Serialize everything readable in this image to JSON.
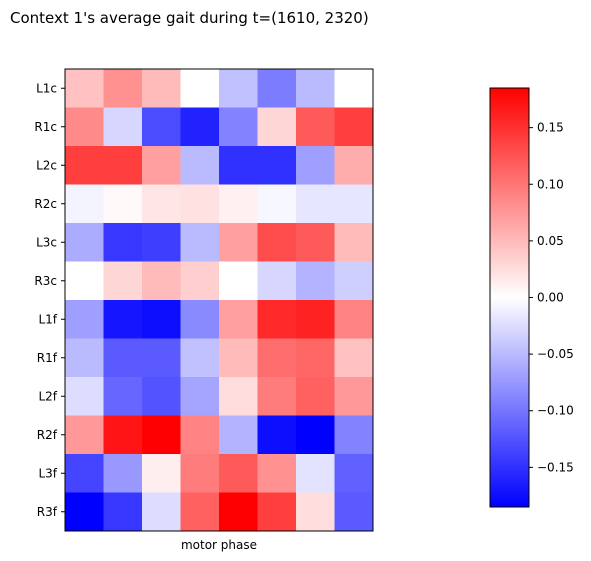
{
  "chart_data": {
    "type": "heatmap",
    "title": "Context 1's average gait during t=(1610, 2320)",
    "xlabel": "motor phase",
    "ylabel": "",
    "rows": [
      "L1c",
      "R1c",
      "L2c",
      "R2c",
      "L3c",
      "R3c",
      "L1f",
      "R1f",
      "L2f",
      "R2f",
      "L3f",
      "R3f"
    ],
    "columns_count": 8,
    "values": [
      [
        0.045,
        0.08,
        0.05,
        0.0,
        -0.045,
        -0.095,
        -0.05,
        0.0
      ],
      [
        0.085,
        -0.03,
        -0.13,
        -0.16,
        -0.09,
        0.03,
        0.12,
        0.14
      ],
      [
        0.14,
        0.14,
        0.07,
        -0.05,
        -0.15,
        -0.15,
        -0.07,
        0.06
      ],
      [
        -0.008,
        0.004,
        0.018,
        0.022,
        0.01,
        -0.006,
        -0.018,
        -0.018
      ],
      [
        -0.06,
        -0.145,
        -0.14,
        -0.05,
        0.07,
        0.13,
        0.12,
        0.05
      ],
      [
        0.0,
        0.03,
        0.05,
        0.035,
        0.0,
        -0.03,
        -0.055,
        -0.035
      ],
      [
        -0.07,
        -0.17,
        -0.175,
        -0.085,
        0.07,
        0.155,
        0.16,
        0.09
      ],
      [
        -0.05,
        -0.12,
        -0.12,
        -0.045,
        0.05,
        0.105,
        0.11,
        0.045
      ],
      [
        -0.025,
        -0.11,
        -0.125,
        -0.065,
        0.025,
        0.095,
        0.115,
        0.075
      ],
      [
        0.075,
        0.17,
        0.185,
        0.09,
        -0.055,
        -0.175,
        -0.185,
        -0.09
      ],
      [
        -0.135,
        -0.075,
        0.012,
        0.095,
        0.12,
        0.08,
        -0.02,
        -0.115
      ],
      [
        -0.185,
        -0.145,
        -0.025,
        0.115,
        0.185,
        0.14,
        0.025,
        -0.12
      ]
    ],
    "colorbar": {
      "colormap": "bwr",
      "vmin": -0.185,
      "vmax": 0.185,
      "ticks": [
        -0.15,
        -0.1,
        -0.05,
        0.0,
        0.05,
        0.1,
        0.15
      ],
      "tick_labels": [
        "−0.15",
        "−0.10",
        "−0.05",
        "0.00",
        "0.05",
        "0.10",
        "0.15"
      ]
    },
    "grid": false,
    "legend": "none"
  }
}
